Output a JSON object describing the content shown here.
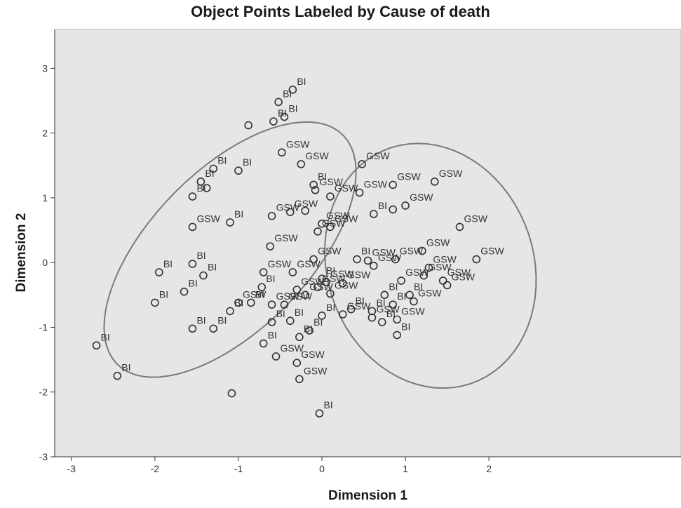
{
  "chart_data": {
    "type": "scatter",
    "title": "Object Points Labeled by Cause of death",
    "xlabel": "Dimension 1",
    "ylabel": "Dimension 2",
    "xlim": [
      -3.2,
      4.3
    ],
    "ylim": [
      -3,
      3.6
    ],
    "xticks": [
      -3,
      -2,
      -1,
      0,
      1,
      2
    ],
    "yticks": [
      -3,
      -2,
      -1,
      0,
      1,
      2,
      3
    ],
    "grid": false,
    "colors": {
      "background": "#e6e6e6",
      "marker": "#333333",
      "ellipse": "#7a7a7a"
    },
    "ellipses": [
      {
        "center": [
          -1.1,
          0.2
        ],
        "rx": 2.25,
        "ry": 1.05,
        "angle_deg": 57
      },
      {
        "center": [
          1.3,
          -0.05
        ],
        "rx": 1.25,
        "ry": 1.9,
        "angle_deg": 8
      }
    ],
    "points": [
      {
        "x": -0.35,
        "y": 2.67,
        "label": "BI"
      },
      {
        "x": -0.52,
        "y": 2.48,
        "label": "BI"
      },
      {
        "x": -0.45,
        "y": 2.25,
        "label": "BI"
      },
      {
        "x": -0.58,
        "y": 2.18,
        "label": "BI"
      },
      {
        "x": -0.88,
        "y": 2.12,
        "label": ""
      },
      {
        "x": -0.48,
        "y": 1.7,
        "label": "GSW"
      },
      {
        "x": -1.3,
        "y": 1.45,
        "label": "BI"
      },
      {
        "x": -1.0,
        "y": 1.42,
        "label": "BI"
      },
      {
        "x": -0.25,
        "y": 1.52,
        "label": "GSW"
      },
      {
        "x": -1.45,
        "y": 1.25,
        "label": "BI"
      },
      {
        "x": -1.38,
        "y": 1.15,
        "label": ""
      },
      {
        "x": -1.55,
        "y": 1.02,
        "label": "BI"
      },
      {
        "x": -0.1,
        "y": 1.2,
        "label": "BI"
      },
      {
        "x": -0.08,
        "y": 1.12,
        "label": "GSW"
      },
      {
        "x": 0.1,
        "y": 1.02,
        "label": "GSW"
      },
      {
        "x": 0.48,
        "y": 1.52,
        "label": "GSW"
      },
      {
        "x": 0.45,
        "y": 1.08,
        "label": "GSW"
      },
      {
        "x": 0.85,
        "y": 1.2,
        "label": "GSW"
      },
      {
        "x": 1.35,
        "y": 1.25,
        "label": "GSW"
      },
      {
        "x": 1.0,
        "y": 0.88,
        "label": "GSW"
      },
      {
        "x": 0.85,
        "y": 0.82,
        "label": ""
      },
      {
        "x": 1.65,
        "y": 0.55,
        "label": "GSW"
      },
      {
        "x": -0.38,
        "y": 0.78,
        "label": "GSW"
      },
      {
        "x": -0.2,
        "y": 0.8,
        "label": ""
      },
      {
        "x": -0.6,
        "y": 0.72,
        "label": "GSW"
      },
      {
        "x": -1.1,
        "y": 0.62,
        "label": "BI"
      },
      {
        "x": -1.55,
        "y": 0.55,
        "label": "GSW"
      },
      {
        "x": 0.0,
        "y": 0.6,
        "label": "GSW"
      },
      {
        "x": 0.1,
        "y": 0.55,
        "label": "GSW"
      },
      {
        "x": 0.62,
        "y": 0.75,
        "label": "BI"
      },
      {
        "x": -0.05,
        "y": 0.48,
        "label": "GSW"
      },
      {
        "x": -0.62,
        "y": 0.25,
        "label": "GSW"
      },
      {
        "x": 1.2,
        "y": 0.18,
        "label": "GSW"
      },
      {
        "x": 0.88,
        "y": 0.05,
        "label": "GSW"
      },
      {
        "x": 0.42,
        "y": 0.05,
        "label": "BI"
      },
      {
        "x": 0.55,
        "y": 0.03,
        "label": "GSW"
      },
      {
        "x": 1.85,
        "y": 0.05,
        "label": "GSW"
      },
      {
        "x": -0.1,
        "y": 0.05,
        "label": "GSW"
      },
      {
        "x": -1.42,
        "y": -0.2,
        "label": "BI"
      },
      {
        "x": -1.55,
        "y": -0.02,
        "label": "BI"
      },
      {
        "x": -1.95,
        "y": -0.15,
        "label": "BI"
      },
      {
        "x": -0.7,
        "y": -0.15,
        "label": "GSW"
      },
      {
        "x": -0.35,
        "y": -0.15,
        "label": "GSW"
      },
      {
        "x": 0.0,
        "y": -0.25,
        "label": "BI"
      },
      {
        "x": 0.62,
        "y": -0.05,
        "label": "GSW"
      },
      {
        "x": 1.28,
        "y": -0.08,
        "label": "GSW"
      },
      {
        "x": 1.22,
        "y": -0.2,
        "label": "GSW"
      },
      {
        "x": 1.5,
        "y": -0.35,
        "label": "GSW"
      },
      {
        "x": 1.45,
        "y": -0.28,
        "label": "GSW"
      },
      {
        "x": 0.95,
        "y": -0.28,
        "label": "GSW"
      },
      {
        "x": 0.05,
        "y": -0.3,
        "label": "GSW"
      },
      {
        "x": 0.25,
        "y": -0.32,
        "label": "GSW"
      },
      {
        "x": -0.72,
        "y": -0.38,
        "label": "BI"
      },
      {
        "x": -0.3,
        "y": -0.42,
        "label": "GSW"
      },
      {
        "x": -0.05,
        "y": -0.38,
        "label": "GSW"
      },
      {
        "x": 0.75,
        "y": -0.5,
        "label": "BI"
      },
      {
        "x": 1.05,
        "y": -0.5,
        "label": "BI"
      },
      {
        "x": -1.65,
        "y": -0.45,
        "label": "BI"
      },
      {
        "x": -0.2,
        "y": -0.5,
        "label": "GSW"
      },
      {
        "x": 0.1,
        "y": -0.48,
        "label": "GSW"
      },
      {
        "x": -2.0,
        "y": -0.62,
        "label": "BI"
      },
      {
        "x": -1.0,
        "y": -0.62,
        "label": "GSW"
      },
      {
        "x": -0.85,
        "y": -0.62,
        "label": "BI"
      },
      {
        "x": -0.6,
        "y": -0.65,
        "label": "GSW"
      },
      {
        "x": -0.45,
        "y": -0.65,
        "label": "GSW"
      },
      {
        "x": 1.1,
        "y": -0.6,
        "label": "GSW"
      },
      {
        "x": 0.85,
        "y": -0.65,
        "label": "BI"
      },
      {
        "x": 0.35,
        "y": -0.72,
        "label": "BI"
      },
      {
        "x": 0.6,
        "y": -0.75,
        "label": "BI"
      },
      {
        "x": -1.1,
        "y": -0.75,
        "label": "BI"
      },
      {
        "x": 0.0,
        "y": -0.82,
        "label": "BI"
      },
      {
        "x": 0.25,
        "y": -0.8,
        "label": "GSW"
      },
      {
        "x": 0.6,
        "y": -0.85,
        "label": "GSW"
      },
      {
        "x": 0.72,
        "y": -0.92,
        "label": "BI"
      },
      {
        "x": 0.9,
        "y": -0.88,
        "label": "GSW"
      },
      {
        "x": -0.6,
        "y": -0.92,
        "label": "BI"
      },
      {
        "x": -0.38,
        "y": -0.9,
        "label": "BI"
      },
      {
        "x": -1.55,
        "y": -1.02,
        "label": "BI"
      },
      {
        "x": -1.3,
        "y": -1.02,
        "label": "BI"
      },
      {
        "x": -0.15,
        "y": -1.05,
        "label": "BI"
      },
      {
        "x": 0.9,
        "y": -1.12,
        "label": "BI"
      },
      {
        "x": -2.7,
        "y": -1.28,
        "label": "BI"
      },
      {
        "x": -0.7,
        "y": -1.25,
        "label": "BI"
      },
      {
        "x": -0.27,
        "y": -1.15,
        "label": "BI"
      },
      {
        "x": -0.55,
        "y": -1.45,
        "label": "GSW"
      },
      {
        "x": -0.3,
        "y": -1.55,
        "label": "GSW"
      },
      {
        "x": -2.45,
        "y": -1.75,
        "label": "BI"
      },
      {
        "x": -0.27,
        "y": -1.8,
        "label": "GSW"
      },
      {
        "x": -1.08,
        "y": -2.02,
        "label": ""
      },
      {
        "x": -0.03,
        "y": -2.33,
        "label": "BI"
      }
    ]
  }
}
